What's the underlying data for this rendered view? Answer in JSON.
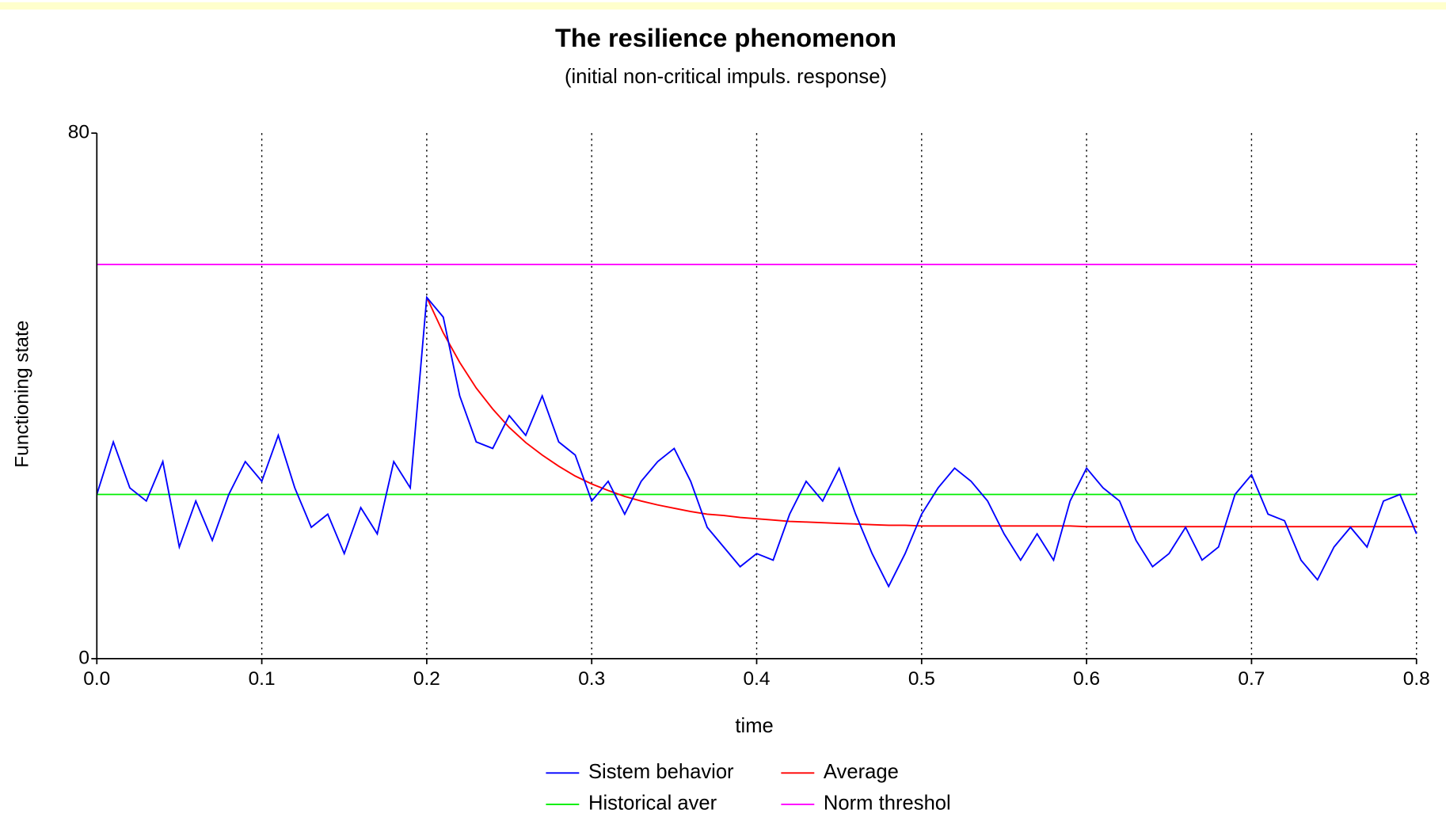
{
  "chart_data": {
    "type": "line",
    "title": "The resilience phenomenon",
    "subtitle": "(initial non-critical impuls. response)",
    "xlabel": "time",
    "ylabel": "Functioning state",
    "xlim": [
      0,
      0.8
    ],
    "ylim": [
      0,
      80
    ],
    "xticks": [
      {
        "value": 0,
        "label": "0.0"
      },
      0.1,
      0.2,
      0.3,
      0.4,
      0.5,
      0.6,
      0.7,
      0.8
    ],
    "yticks": [
      0,
      80
    ],
    "grid": true,
    "legend": "bottom",
    "x": [
      0,
      0.01,
      0.02,
      0.03,
      0.04,
      0.05,
      0.06,
      0.07,
      0.08,
      0.09,
      0.1,
      0.11,
      0.12,
      0.13,
      0.14,
      0.15,
      0.16,
      0.17,
      0.18,
      0.19,
      0.2,
      0.21,
      0.22,
      0.23,
      0.24,
      0.25,
      0.26,
      0.27,
      0.28,
      0.29,
      0.3,
      0.31,
      0.32,
      0.33,
      0.34,
      0.35,
      0.36,
      0.37,
      0.38,
      0.39,
      0.4,
      0.41,
      0.42,
      0.43,
      0.44,
      0.45,
      0.46,
      0.47,
      0.48,
      0.49,
      0.5,
      0.51,
      0.52,
      0.53,
      0.54,
      0.55,
      0.56,
      0.57,
      0.58,
      0.59,
      0.6,
      0.61,
      0.62,
      0.63,
      0.64,
      0.65,
      0.66,
      0.67,
      0.68,
      0.69,
      0.7,
      0.71,
      0.72,
      0.73,
      0.74,
      0.75,
      0.76,
      0.77,
      0.78,
      0.79,
      0.8
    ],
    "series": [
      {
        "name": "Sistem behavior",
        "color": "#0000ff",
        "values": [
          25,
          33,
          26,
          24,
          30,
          17,
          24,
          18,
          25,
          30,
          27,
          34,
          26,
          20,
          22,
          16,
          23,
          19,
          30,
          26,
          55,
          52,
          40,
          33,
          32,
          37,
          34,
          40,
          33,
          31,
          24,
          27,
          22,
          27,
          30,
          32,
          27,
          20,
          17,
          14,
          16,
          15,
          22,
          27,
          24,
          29,
          22,
          16,
          11,
          16,
          22,
          26,
          29,
          27,
          24,
          19,
          15,
          19,
          15,
          24,
          29,
          26,
          24,
          18,
          14,
          16,
          20,
          15,
          17,
          25,
          28,
          22,
          21,
          15,
          12,
          17,
          20,
          17,
          24,
          25,
          19
        ]
      },
      {
        "name": "Average",
        "color": "#ff0000",
        "values": [
          null,
          null,
          null,
          null,
          null,
          null,
          null,
          null,
          null,
          null,
          null,
          null,
          null,
          null,
          null,
          null,
          null,
          null,
          null,
          null,
          55,
          49.6,
          45.1,
          41.2,
          38,
          35.2,
          32.9,
          31,
          29.3,
          27.8,
          26.6,
          25.6,
          24.7,
          24,
          23.4,
          22.9,
          22.4,
          22,
          21.8,
          21.5,
          21.3,
          21.1,
          20.9,
          20.8,
          20.7,
          20.6,
          20.5,
          20.4,
          20.3,
          20.3,
          20.2,
          20.2,
          20.2,
          20.2,
          20.2,
          20.2,
          20.2,
          20.2,
          20.2,
          20.2,
          20.1,
          20.1,
          20.1,
          20.1,
          20.1,
          20.1,
          20.1,
          20.1,
          20.1,
          20.1,
          20.1,
          20.1,
          20.1,
          20.1,
          20.1,
          20.1,
          20.1,
          20.1,
          20.1,
          20.1,
          20.1
        ]
      },
      {
        "name": "Historical aver",
        "color": "#00ee00",
        "x": [
          0,
          0.8
        ],
        "values": [
          25,
          25
        ]
      },
      {
        "name": "Norm threshol",
        "color": "#ff00ff",
        "x": [
          0,
          0.8
        ],
        "values": [
          60,
          60
        ]
      }
    ]
  }
}
